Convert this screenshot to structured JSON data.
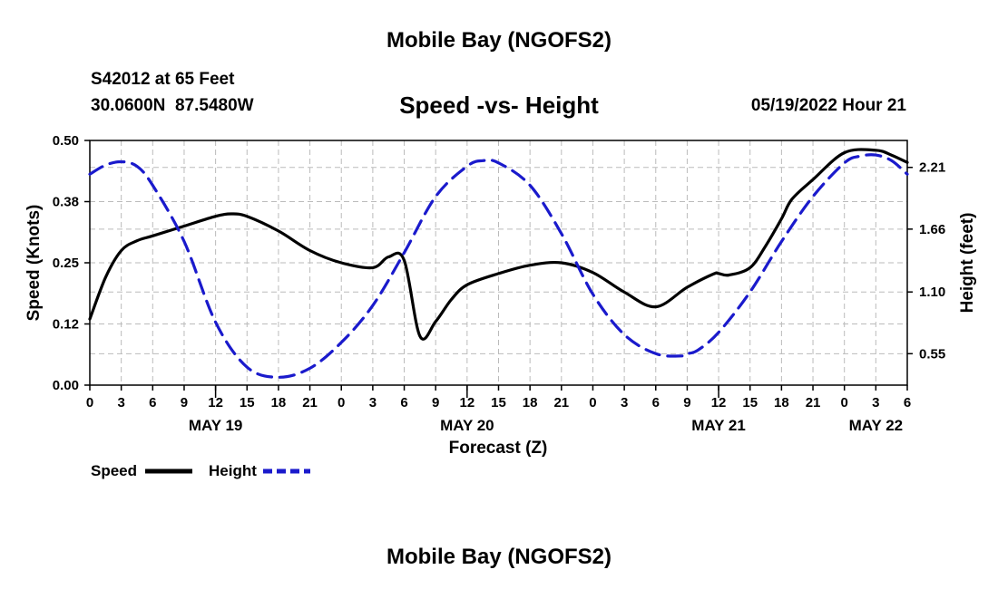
{
  "header": {
    "title": "Mobile Bay (NGOFS2)",
    "station": "S42012 at 65 Feet",
    "coords": "30.0600N  87.5480W",
    "subtitle": "Speed -vs- Height",
    "timestamp": "05/19/2022 Hour 21"
  },
  "footer": {
    "title": "Mobile Bay (NGOFS2)"
  },
  "colors": {
    "speed": "#000000",
    "height": "#1a1acc",
    "grid": "#bbbbbb"
  },
  "chart_data": {
    "type": "line",
    "title": "Speed -vs- Height",
    "xlabel": "Forecast (Z)",
    "ylabel": "Speed (Knots)",
    "y2label": "Height (feet)",
    "xlim": [
      0,
      78
    ],
    "ylim": [
      0,
      0.5
    ],
    "y2lim": [
      0.27,
      2.45
    ],
    "x_ticks": [
      0,
      3,
      6,
      9,
      12,
      15,
      18,
      21,
      24,
      27,
      30,
      33,
      36,
      39,
      42,
      45,
      48,
      51,
      54,
      57,
      60,
      63,
      66,
      69,
      72,
      75,
      78
    ],
    "x_tick_labels": [
      "0",
      "3",
      "6",
      "9",
      "12",
      "15",
      "18",
      "21",
      "0",
      "3",
      "6",
      "9",
      "12",
      "15",
      "18",
      "21",
      "0",
      "3",
      "6",
      "9",
      "12",
      "15",
      "18",
      "21",
      "0",
      "3",
      "6"
    ],
    "day_ticks": [
      12,
      36,
      60
    ],
    "day_labels": [
      {
        "x": 12,
        "label": "MAY 19"
      },
      {
        "x": 36,
        "label": "MAY 20"
      },
      {
        "x": 60,
        "label": "MAY 21"
      },
      {
        "x": 75,
        "label": "MAY 22"
      }
    ],
    "y_ticks": [
      0.0,
      0.125,
      0.25,
      0.375,
      0.5
    ],
    "y_tick_labels": [
      "0.00",
      "0.12",
      "0.25",
      "0.38",
      "0.50"
    ],
    "y2_ticks": [
      0.55,
      1.1,
      1.66,
      2.21
    ],
    "y2_tick_labels": [
      "0.55",
      "1.10",
      "1.66",
      "2.21"
    ],
    "legend": [
      {
        "name": "Speed",
        "style": "solid"
      },
      {
        "name": "Height",
        "style": "dashed"
      }
    ],
    "series": [
      {
        "name": "Speed",
        "axis": "left",
        "x": [
          0,
          1.5,
          3,
          4.5,
          6,
          9,
          12,
          13.5,
          15,
          18,
          21,
          24,
          27,
          28.5,
          30,
          31.5,
          33,
          34.5,
          36,
          39,
          42,
          45,
          48,
          51,
          54,
          57,
          59.5,
          60,
          61,
          63,
          64.5,
          66,
          67,
          69,
          72,
          75,
          76.5,
          78
        ],
        "values": [
          0.135,
          0.22,
          0.275,
          0.295,
          0.305,
          0.325,
          0.345,
          0.35,
          0.345,
          0.315,
          0.275,
          0.25,
          0.24,
          0.262,
          0.255,
          0.1,
          0.13,
          0.175,
          0.205,
          0.228,
          0.245,
          0.25,
          0.23,
          0.19,
          0.16,
          0.2,
          0.227,
          0.228,
          0.225,
          0.24,
          0.285,
          0.34,
          0.38,
          0.42,
          0.475,
          0.48,
          0.47,
          0.455
        ]
      },
      {
        "name": "Height",
        "axis": "right",
        "x": [
          0,
          1.5,
          3,
          4.5,
          6,
          9,
          12,
          15,
          18,
          21,
          24,
          27,
          30,
          33,
          36,
          37.5,
          39,
          42,
          45,
          48,
          51,
          54,
          56.5,
          57,
          58,
          60,
          63,
          66,
          69,
          72,
          73.5,
          75,
          76.5,
          78
        ],
        "values": [
          2.15,
          2.23,
          2.26,
          2.22,
          2.05,
          1.55,
          0.83,
          0.43,
          0.34,
          0.42,
          0.65,
          0.98,
          1.45,
          1.95,
          2.22,
          2.27,
          2.25,
          2.05,
          1.62,
          1.08,
          0.72,
          0.55,
          0.53,
          0.55,
          0.58,
          0.74,
          1.1,
          1.55,
          1.95,
          2.25,
          2.31,
          2.32,
          2.27,
          2.15
        ]
      }
    ]
  }
}
